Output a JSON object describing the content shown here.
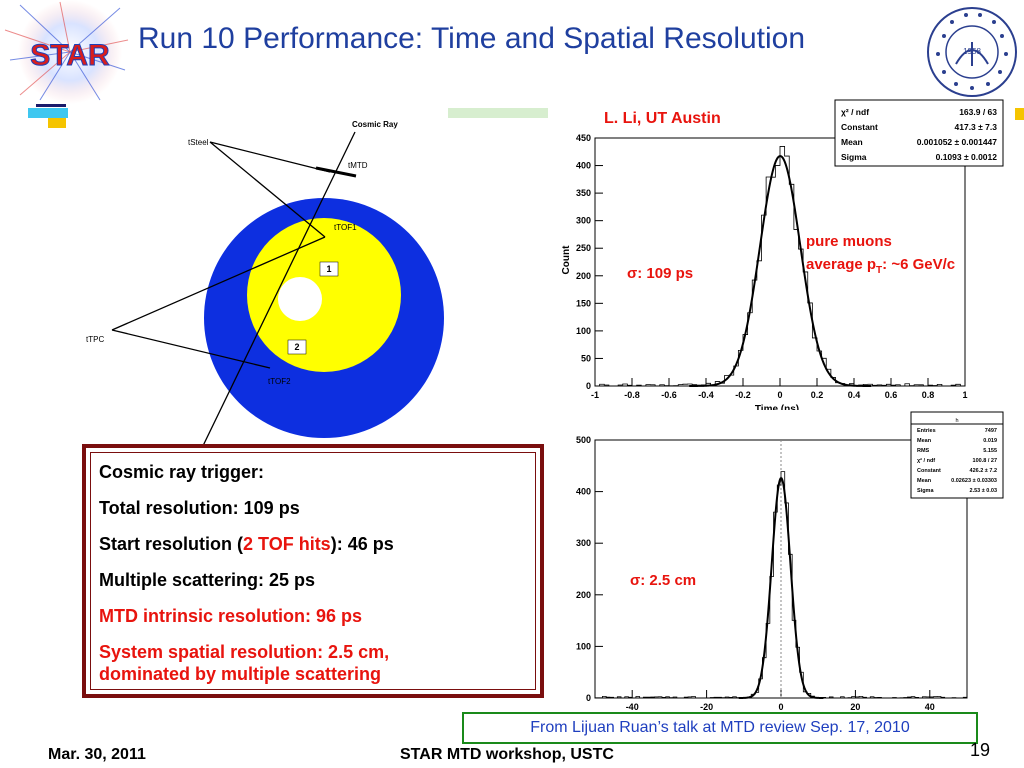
{
  "slide": {
    "title": "Run 10 Performance: Time and Spatial Resolution",
    "logo_text": "STAR",
    "seal_year": "1958",
    "credit": "L. Li, UT Austin",
    "footer_date": "Mar. 30, 2011",
    "footer_center": "STAR MTD workshop, USTC",
    "page_number": "19",
    "source_note": "From Lijuan Ruan’s talk at MTD review Sep. 17, 2010"
  },
  "diagram": {
    "labels": {
      "cosmic_ray": "Cosmic Ray",
      "tsteel": "tSteel",
      "tmtd": "tMTD",
      "ttof1": "tTOF1",
      "ttpc": "tTPC",
      "ttof2": "tTOF2",
      "one": "1",
      "two": "2"
    },
    "colors": {
      "outer": "#0d2fe0",
      "middle": "#ffff00",
      "inner": "#ffffff"
    }
  },
  "textbox": {
    "line1": "Cosmic ray trigger:",
    "line2": "Total resolution: 109 ps",
    "line3_pre": "Start resolution (",
    "line3_red": "2 TOF hits",
    "line3_post": "): 46 ps",
    "line4": "Multiple scattering: 25 ps",
    "line5": "MTD intrinsic resolution: 96 ps",
    "line6a": "System spatial resolution: 2.5 cm,",
    "line6b": "dominated by multiple scattering"
  },
  "chart_data": [
    {
      "type": "histogram",
      "xlabel": "Time (ns)",
      "ylabel": "Count",
      "xlim": [
        -1,
        1
      ],
      "ylim": [
        0,
        450
      ],
      "xticks": [
        "-1",
        "-0.8",
        "-0.6",
        "-0.4",
        "-0.2",
        "0",
        "0.2",
        "0.4",
        "0.6",
        "0.8",
        "1"
      ],
      "yticks": [
        "0",
        "50",
        "100",
        "150",
        "200",
        "250",
        "300",
        "350",
        "400",
        "450"
      ],
      "fit": {
        "type": "gaussian",
        "constant": 417.3,
        "mean": 0.001052,
        "sigma": 0.1093
      },
      "stats": [
        {
          "label": "χ² / ndf",
          "value": "163.9 / 63"
        },
        {
          "label": "Constant",
          "value": "417.3 ± 7.3"
        },
        {
          "label": "Mean",
          "value": "0.001052 ± 0.001447"
        },
        {
          "label": "Sigma",
          "value": "0.1093 ± 0.0012"
        }
      ],
      "annotations": {
        "sigma": "σ: 109 ps",
        "pure": "pure muons",
        "avg_pre": "average p",
        "avg_sub": "T",
        "avg_post": ": ~6 GeV/c"
      },
      "peak": 440
    },
    {
      "type": "histogram",
      "xlabel": "",
      "ylabel": "",
      "xlim": [
        -50,
        50
      ],
      "ylim": [
        0,
        500
      ],
      "xticks": [
        "-40",
        "-20",
        "0",
        "20",
        "40"
      ],
      "yticks": [
        "0",
        "100",
        "200",
        "300",
        "400",
        "500"
      ],
      "fit": {
        "type": "gaussian",
        "constant": 426.2,
        "mean": 0.02623,
        "sigma": 2.53
      },
      "stats_title": "h",
      "stats": [
        {
          "label": "Entries",
          "value": "7497"
        },
        {
          "label": "Mean",
          "value": "0.019"
        },
        {
          "label": "RMS",
          "value": "5.155"
        },
        {
          "label": "χ² / ndf",
          "value": "100.8 / 27"
        },
        {
          "label": "Constant",
          "value": "426.2 ± 7.2"
        },
        {
          "label": "Mean",
          "value": "0.02623 ± 0.03303"
        },
        {
          "label": "Sigma",
          "value": "2.53 ± 0.03"
        }
      ],
      "annotations": {
        "sigma": "σ: 2.5 cm"
      },
      "peak": 490
    }
  ]
}
